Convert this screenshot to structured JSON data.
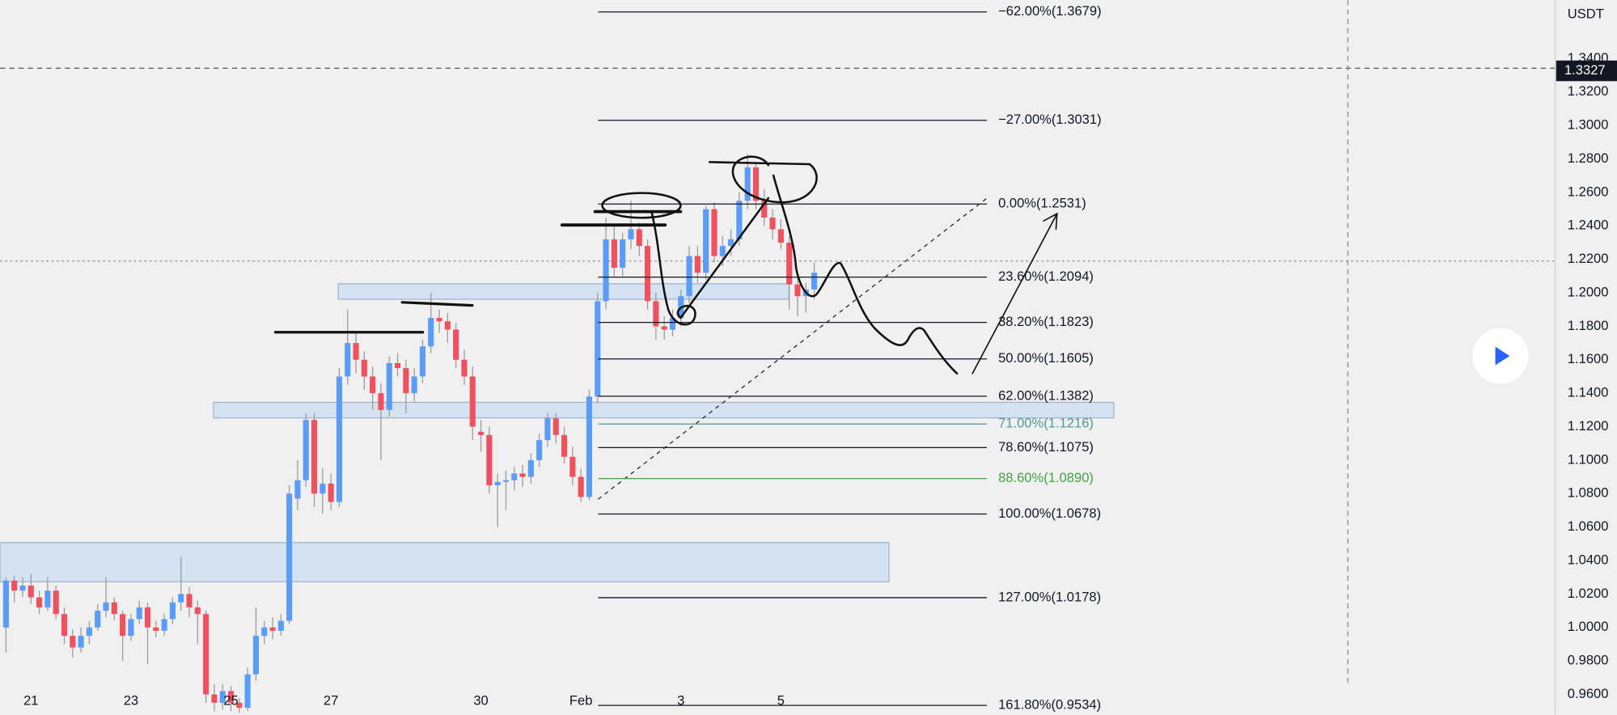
{
  "chart_data": {
    "type": "candlestick",
    "axis_label": "USDT",
    "colors": {
      "up": "#5b9cf6",
      "down": "#f0515e"
    },
    "ylim": [
      0.9478,
      1.3749
    ],
    "yticks": [
      {
        "value": 1.34,
        "label": "1.3400"
      },
      {
        "value": 1.32,
        "label": "1.3200"
      },
      {
        "value": 1.3,
        "label": "1.3000"
      },
      {
        "value": 1.28,
        "label": "1.2800"
      },
      {
        "value": 1.26,
        "label": "1.2600"
      },
      {
        "value": 1.24,
        "label": "1.2400"
      },
      {
        "value": 1.22,
        "label": "1.2200"
      },
      {
        "value": 1.2,
        "label": "1.2000"
      },
      {
        "value": 1.18,
        "label": "1.1800"
      },
      {
        "value": 1.16,
        "label": "1.1600"
      },
      {
        "value": 1.14,
        "label": "1.1400"
      },
      {
        "value": 1.12,
        "label": "1.1200"
      },
      {
        "value": 1.1,
        "label": "1.1000"
      },
      {
        "value": 1.08,
        "label": "1.0800"
      },
      {
        "value": 1.06,
        "label": "1.0600"
      },
      {
        "value": 1.04,
        "label": "1.0400"
      },
      {
        "value": 1.02,
        "label": "1.0200"
      },
      {
        "value": 1.0,
        "label": "1.0000"
      },
      {
        "value": 0.98,
        "label": "0.9800"
      },
      {
        "value": 0.96,
        "label": "0.9600"
      }
    ],
    "current_price": {
      "value": 1.3327,
      "label": "1.3327"
    },
    "xticks": [
      {
        "value": 3,
        "label": "21"
      },
      {
        "value": 15,
        "label": "23"
      },
      {
        "value": 27,
        "label": "25"
      },
      {
        "value": 39,
        "label": "27"
      },
      {
        "value": 57,
        "label": "30"
      },
      {
        "value": 69,
        "label": "Feb"
      },
      {
        "value": 81,
        "label": "3"
      },
      {
        "value": 93,
        "label": "5"
      }
    ],
    "candles": [
      {
        "o": 1.0,
        "h": 1.03,
        "l": 0.985,
        "c": 1.028
      },
      {
        "o": 1.028,
        "h": 1.031,
        "l": 1.015,
        "c": 1.022
      },
      {
        "o": 1.022,
        "h": 1.03,
        "l": 1.018,
        "c": 1.025
      },
      {
        "o": 1.025,
        "h": 1.032,
        "l": 1.014,
        "c": 1.018
      },
      {
        "o": 1.018,
        "h": 1.022,
        "l": 1.008,
        "c": 1.012
      },
      {
        "o": 1.012,
        "h": 1.03,
        "l": 1.01,
        "c": 1.022
      },
      {
        "o": 1.022,
        "h": 1.025,
        "l": 1.005,
        "c": 1.008
      },
      {
        "o": 1.008,
        "h": 1.012,
        "l": 0.99,
        "c": 0.995
      },
      {
        "o": 0.995,
        "h": 0.999,
        "l": 0.982,
        "c": 0.988
      },
      {
        "o": 0.988,
        "h": 1.0,
        "l": 0.985,
        "c": 0.995
      },
      {
        "o": 0.995,
        "h": 1.004,
        "l": 0.99,
        "c": 1.0
      },
      {
        "o": 1.0,
        "h": 1.014,
        "l": 0.998,
        "c": 1.01
      },
      {
        "o": 1.01,
        "h": 1.03,
        "l": 1.006,
        "c": 1.015
      },
      {
        "o": 1.015,
        "h": 1.018,
        "l": 1.004,
        "c": 1.008
      },
      {
        "o": 1.008,
        "h": 1.01,
        "l": 0.98,
        "c": 0.995
      },
      {
        "o": 0.995,
        "h": 1.008,
        "l": 0.992,
        "c": 1.005
      },
      {
        "o": 1.005,
        "h": 1.016,
        "l": 1.002,
        "c": 1.012
      },
      {
        "o": 1.012,
        "h": 1.015,
        "l": 0.978,
        "c": 1.0
      },
      {
        "o": 1.0,
        "h": 1.004,
        "l": 0.994,
        "c": 0.998
      },
      {
        "o": 0.998,
        "h": 1.008,
        "l": 0.995,
        "c": 1.005
      },
      {
        "o": 1.005,
        "h": 1.018,
        "l": 1.002,
        "c": 1.015
      },
      {
        "o": 1.015,
        "h": 1.042,
        "l": 1.01,
        "c": 1.02
      },
      {
        "o": 1.02,
        "h": 1.024,
        "l": 1.006,
        "c": 1.012
      },
      {
        "o": 1.012,
        "h": 1.016,
        "l": 0.99,
        "c": 1.008
      },
      {
        "o": 1.008,
        "h": 1.01,
        "l": 0.955,
        "c": 0.96
      },
      {
        "o": 0.96,
        "h": 0.966,
        "l": 0.95,
        "c": 0.955
      },
      {
        "o": 0.955,
        "h": 0.966,
        "l": 0.951,
        "c": 0.962
      },
      {
        "o": 0.962,
        "h": 0.965,
        "l": 0.95,
        "c": 0.955
      },
      {
        "o": 0.955,
        "h": 0.958,
        "l": 0.949,
        "c": 0.952
      },
      {
        "o": 0.952,
        "h": 0.976,
        "l": 0.95,
        "c": 0.972
      },
      {
        "o": 0.972,
        "h": 1.012,
        "l": 0.968,
        "c": 0.995
      },
      {
        "o": 0.995,
        "h": 1.004,
        "l": 0.99,
        "c": 1.0
      },
      {
        "o": 1.0,
        "h": 1.006,
        "l": 0.993,
        "c": 0.998
      },
      {
        "o": 0.998,
        "h": 1.008,
        "l": 0.995,
        "c": 1.004
      },
      {
        "o": 1.004,
        "h": 1.085,
        "l": 1.002,
        "c": 1.08
      },
      {
        "o": 1.077,
        "h": 1.1,
        "l": 1.07,
        "c": 1.088
      },
      {
        "o": 1.088,
        "h": 1.128,
        "l": 1.084,
        "c": 1.124
      },
      {
        "o": 1.124,
        "h": 1.128,
        "l": 1.072,
        "c": 1.08
      },
      {
        "o": 1.08,
        "h": 1.095,
        "l": 1.068,
        "c": 1.086
      },
      {
        "o": 1.086,
        "h": 1.092,
        "l": 1.07,
        "c": 1.075
      },
      {
        "o": 1.075,
        "h": 1.155,
        "l": 1.072,
        "c": 1.15
      },
      {
        "o": 1.15,
        "h": 1.19,
        "l": 1.145,
        "c": 1.17
      },
      {
        "o": 1.17,
        "h": 1.176,
        "l": 1.152,
        "c": 1.16
      },
      {
        "o": 1.16,
        "h": 1.165,
        "l": 1.142,
        "c": 1.15
      },
      {
        "o": 1.15,
        "h": 1.156,
        "l": 1.13,
        "c": 1.14
      },
      {
        "o": 1.14,
        "h": 1.146,
        "l": 1.1,
        "c": 1.13
      },
      {
        "o": 1.13,
        "h": 1.162,
        "l": 1.126,
        "c": 1.158
      },
      {
        "o": 1.158,
        "h": 1.164,
        "l": 1.15,
        "c": 1.155
      },
      {
        "o": 1.155,
        "h": 1.16,
        "l": 1.128,
        "c": 1.14
      },
      {
        "o": 1.14,
        "h": 1.155,
        "l": 1.135,
        "c": 1.15
      },
      {
        "o": 1.15,
        "h": 1.172,
        "l": 1.146,
        "c": 1.168
      },
      {
        "o": 1.168,
        "h": 1.2,
        "l": 1.164,
        "c": 1.185
      },
      {
        "o": 1.185,
        "h": 1.19,
        "l": 1.176,
        "c": 1.183
      },
      {
        "o": 1.183,
        "h": 1.188,
        "l": 1.17,
        "c": 1.178
      },
      {
        "o": 1.178,
        "h": 1.182,
        "l": 1.155,
        "c": 1.16
      },
      {
        "o": 1.16,
        "h": 1.166,
        "l": 1.145,
        "c": 1.15
      },
      {
        "o": 1.15,
        "h": 1.156,
        "l": 1.112,
        "c": 1.12
      },
      {
        "o": 1.117,
        "h": 1.124,
        "l": 1.105,
        "c": 1.115
      },
      {
        "o": 1.115,
        "h": 1.12,
        "l": 1.08,
        "c": 1.085
      },
      {
        "o": 1.085,
        "h": 1.092,
        "l": 1.06,
        "c": 1.087
      },
      {
        "o": 1.087,
        "h": 1.094,
        "l": 1.07,
        "c": 1.088
      },
      {
        "o": 1.088,
        "h": 1.096,
        "l": 1.082,
        "c": 1.092
      },
      {
        "o": 1.092,
        "h": 1.097,
        "l": 1.084,
        "c": 1.09
      },
      {
        "o": 1.09,
        "h": 1.104,
        "l": 1.086,
        "c": 1.1
      },
      {
        "o": 1.1,
        "h": 1.116,
        "l": 1.096,
        "c": 1.112
      },
      {
        "o": 1.112,
        "h": 1.128,
        "l": 1.108,
        "c": 1.125
      },
      {
        "o": 1.125,
        "h": 1.128,
        "l": 1.11,
        "c": 1.115
      },
      {
        "o": 1.115,
        "h": 1.12,
        "l": 1.098,
        "c": 1.102
      },
      {
        "o": 1.102,
        "h": 1.108,
        "l": 1.085,
        "c": 1.09
      },
      {
        "o": 1.09,
        "h": 1.095,
        "l": 1.075,
        "c": 1.078
      },
      {
        "o": 1.078,
        "h": 1.142,
        "l": 1.076,
        "c": 1.138
      },
      {
        "o": 1.138,
        "h": 1.2,
        "l": 1.134,
        "c": 1.195
      },
      {
        "o": 1.195,
        "h": 1.245,
        "l": 1.19,
        "c": 1.232
      },
      {
        "o": 1.232,
        "h": 1.24,
        "l": 1.21,
        "c": 1.215
      },
      {
        "o": 1.215,
        "h": 1.236,
        "l": 1.21,
        "c": 1.232
      },
      {
        "o": 1.232,
        "h": 1.255,
        "l": 1.226,
        "c": 1.238
      },
      {
        "o": 1.238,
        "h": 1.242,
        "l": 1.222,
        "c": 1.228
      },
      {
        "o": 1.228,
        "h": 1.232,
        "l": 1.19,
        "c": 1.195
      },
      {
        "o": 1.195,
        "h": 1.2,
        "l": 1.172,
        "c": 1.18
      },
      {
        "o": 1.18,
        "h": 1.186,
        "l": 1.172,
        "c": 1.178
      },
      {
        "o": 1.178,
        "h": 1.19,
        "l": 1.174,
        "c": 1.185
      },
      {
        "o": 1.185,
        "h": 1.202,
        "l": 1.18,
        "c": 1.198
      },
      {
        "o": 1.198,
        "h": 1.228,
        "l": 1.194,
        "c": 1.222
      },
      {
        "o": 1.222,
        "h": 1.228,
        "l": 1.206,
        "c": 1.212
      },
      {
        "o": 1.212,
        "h": 1.252,
        "l": 1.208,
        "c": 1.25
      },
      {
        "o": 1.25,
        "h": 1.254,
        "l": 1.218,
        "c": 1.222
      },
      {
        "o": 1.222,
        "h": 1.234,
        "l": 1.216,
        "c": 1.228
      },
      {
        "o": 1.228,
        "h": 1.238,
        "l": 1.222,
        "c": 1.232
      },
      {
        "o": 1.232,
        "h": 1.26,
        "l": 1.228,
        "c": 1.255
      },
      {
        "o": 1.255,
        "h": 1.283,
        "l": 1.25,
        "c": 1.275
      },
      {
        "o": 1.275,
        "h": 1.278,
        "l": 1.25,
        "c": 1.255
      },
      {
        "o": 1.255,
        "h": 1.262,
        "l": 1.24,
        "c": 1.245
      },
      {
        "o": 1.245,
        "h": 1.25,
        "l": 1.232,
        "c": 1.238
      },
      {
        "o": 1.238,
        "h": 1.244,
        "l": 1.226,
        "c": 1.23
      },
      {
        "o": 1.23,
        "h": 1.234,
        "l": 1.19,
        "c": 1.205
      },
      {
        "o": 1.205,
        "h": 1.21,
        "l": 1.186,
        "c": 1.198
      },
      {
        "o": 1.198,
        "h": 1.206,
        "l": 1.188,
        "c": 1.202
      },
      {
        "o": 1.202,
        "h": 1.218,
        "l": 1.196,
        "c": 1.212
      }
    ],
    "fib_levels": [
      {
        "label": "−62.00%(1.3679)",
        "value": 1.3679,
        "color": "#131722"
      },
      {
        "label": "−27.00%(1.3031)",
        "value": 1.3031,
        "color": "#131722"
      },
      {
        "label": "0.00%(1.2531)",
        "value": 1.2531,
        "color": "#131722"
      },
      {
        "label": "23.60%(1.2094)",
        "value": 1.2094,
        "color": "#131722"
      },
      {
        "label": "38.20%(1.1823)",
        "value": 1.1823,
        "color": "#131722"
      },
      {
        "label": "50.00%(1.1605)",
        "value": 1.1605,
        "color": "#131722"
      },
      {
        "label": "62.00%(1.1382)",
        "value": 1.1382,
        "color": "#131722"
      },
      {
        "label": "71.00%(1.1216)",
        "value": 1.1216,
        "color": "#4f9a94"
      },
      {
        "label": "78.60%(1.1075)",
        "value": 1.1075,
        "color": "#131722"
      },
      {
        "label": "88.60%(1.0890)",
        "value": 1.089,
        "color": "#43a047"
      },
      {
        "label": "100.00%(1.0678)",
        "value": 1.0678,
        "color": "#131722"
      },
      {
        "label": "127.00%(1.0178)",
        "value": 1.0178,
        "color": "#131722"
      },
      {
        "label": "161.80%(0.9534)",
        "value": 0.9534,
        "color": "#131722"
      }
    ]
  }
}
